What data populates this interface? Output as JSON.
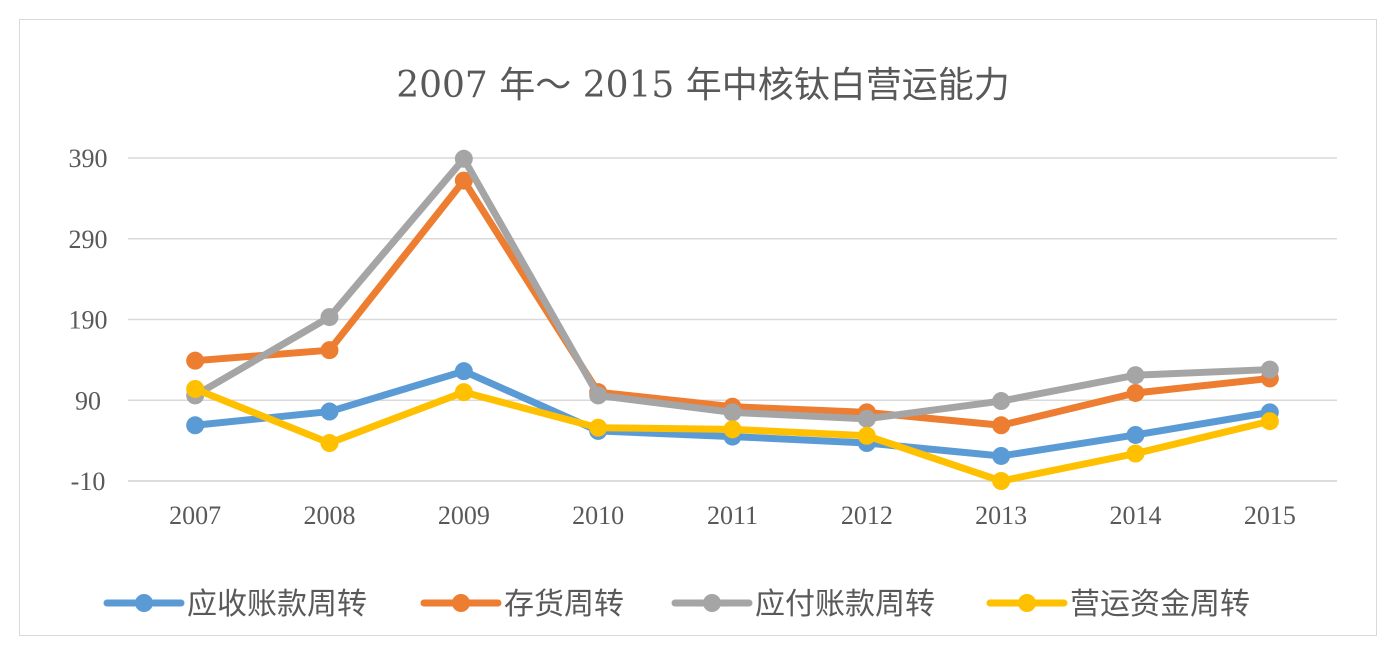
{
  "chart_data": {
    "type": "line",
    "title": "2007 年～ 2015 年中核钛白营运能力",
    "categories": [
      "2007",
      "2008",
      "2009",
      "2010",
      "2011",
      "2012",
      "2013",
      "2014",
      "2015"
    ],
    "yticks": [
      -10,
      90,
      190,
      290,
      390
    ],
    "ylim": [
      -10,
      390
    ],
    "grid": true,
    "legend_position": "bottom",
    "series": [
      {
        "name": "应收账款周转",
        "color": "#5b9bd5",
        "values": [
          59,
          76,
          126,
          52,
          45,
          37,
          21,
          47,
          75
        ]
      },
      {
        "name": "存货周转",
        "color": "#ed7d31",
        "values": [
          139,
          152,
          362,
          100,
          82,
          75,
          59,
          99,
          117
        ]
      },
      {
        "name": "应付账款周转",
        "color": "#a5a5a5",
        "values": [
          96,
          193,
          389,
          96,
          75,
          67,
          89,
          121,
          128
        ]
      },
      {
        "name": "营运资金周转",
        "color": "#ffc000",
        "values": [
          104,
          37,
          100,
          56,
          54,
          46,
          -10,
          24,
          64
        ]
      }
    ]
  }
}
